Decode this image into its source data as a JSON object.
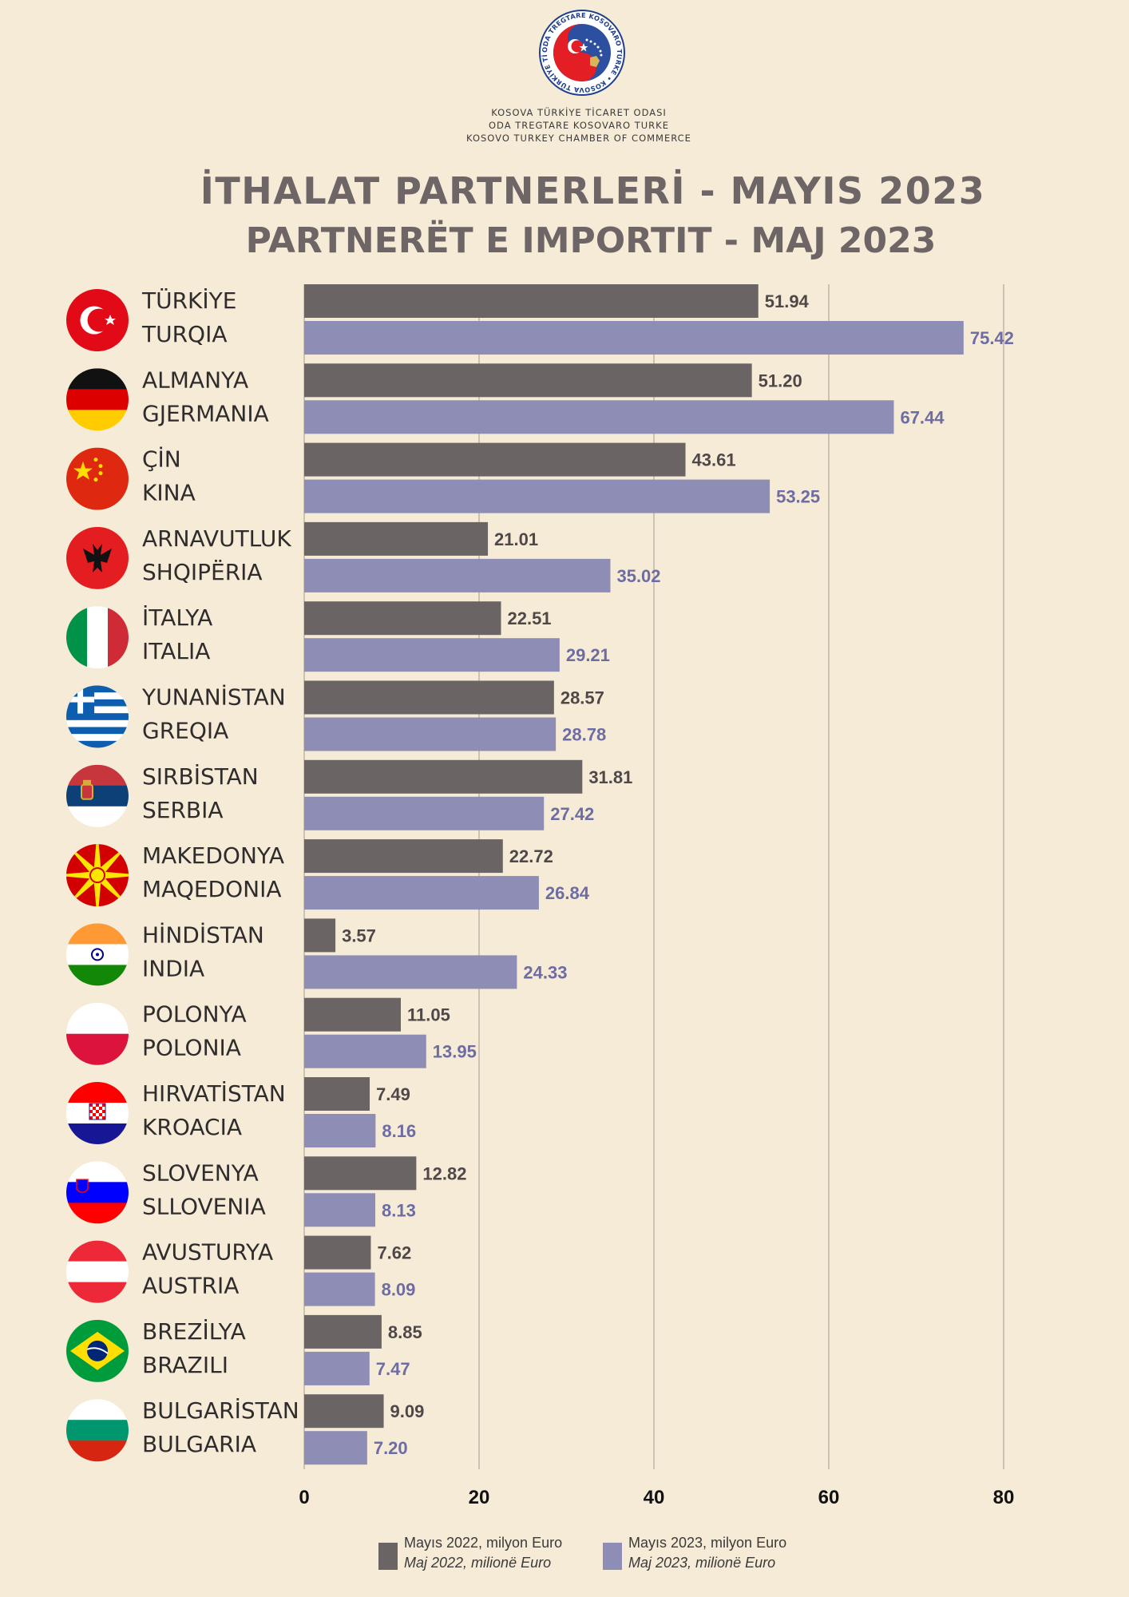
{
  "header": {
    "org_lines": [
      "KOSOVA TÜRKİYE TİCARET ODASI",
      "ODA TREGTARE KOSOVARO TURKE",
      "KOSOVO TURKEY CHAMBER OF COMMERCE"
    ],
    "logo_ring_text": "ODA TREGTARE KOSOVARO TURKE • KOSOVA TÜRKİYE TİCARET ODASI •",
    "title_line1": "İTHALAT PARTNERLERİ - MAYIS 2023",
    "title_line2": "PARTNERËT E IMPORTIT - MAJ 2023"
  },
  "colors": {
    "background": "#f6ebd6",
    "series_2022": "#6b6465",
    "series_2023": "#8e8db5",
    "label_2022": "#4f4849",
    "label_2023": "#6d6ca3",
    "grid": "#bdb4a6"
  },
  "chart_data": {
    "type": "bar",
    "orientation": "horizontal",
    "categories": [
      {
        "tr": "TÜRKİYE",
        "sq": "TURQIA",
        "flag": "turkey-flag"
      },
      {
        "tr": "ALMANYA",
        "sq": "GJERMANIA",
        "flag": "germany-flag"
      },
      {
        "tr": "ÇİN",
        "sq": "KINA",
        "flag": "china-flag"
      },
      {
        "tr": "ARNAVUTLUK",
        "sq": "SHQIPËRIA",
        "flag": "albania-flag"
      },
      {
        "tr": "İTALYA",
        "sq": "ITALIA",
        "flag": "italy-flag"
      },
      {
        "tr": "YUNANİSTAN",
        "sq": "GREQIA",
        "flag": "greece-flag"
      },
      {
        "tr": "SIRBİSTAN",
        "sq": "SERBIA",
        "flag": "serbia-flag"
      },
      {
        "tr": "MAKEDONYA",
        "sq": "MAQEDONIA",
        "flag": "north-macedonia-flag"
      },
      {
        "tr": "HİNDİSTAN",
        "sq": "INDIA",
        "flag": "india-flag"
      },
      {
        "tr": "POLONYA",
        "sq": "POLONIA",
        "flag": "poland-flag"
      },
      {
        "tr": "HIRVATİSTAN",
        "sq": "KROACIA",
        "flag": "croatia-flag"
      },
      {
        "tr": "SLOVENYA",
        "sq": "SLLOVENIA",
        "flag": "slovenia-flag"
      },
      {
        "tr": "AVUSTURYA",
        "sq": "AUSTRIA",
        "flag": "austria-flag"
      },
      {
        "tr": "BREZİLYA",
        "sq": "BRAZILI",
        "flag": "brazil-flag"
      },
      {
        "tr": "BULGARİSTAN",
        "sq": "BULGARIA",
        "flag": "bulgaria-flag"
      }
    ],
    "series": [
      {
        "name": "Mayıs 2022, milyon Euro",
        "name_alt": "Maj 2022, milionë Euro",
        "values": [
          51.94,
          51.2,
          43.61,
          21.01,
          22.51,
          28.57,
          31.81,
          22.72,
          3.57,
          11.05,
          7.49,
          12.82,
          7.62,
          8.85,
          9.09
        ],
        "value_labels": [
          "51.94",
          "51.20",
          "43.61",
          "21.01",
          "22.51",
          "28.57",
          "31.81",
          "22.72",
          "3.57",
          "11.05",
          "7.49",
          "12.82",
          "7.62",
          "8.85",
          "9.09"
        ]
      },
      {
        "name": "Mayıs 2023, milyon Euro",
        "name_alt": "Maj 2023, milionë Euro",
        "values": [
          75.42,
          67.44,
          53.25,
          35.02,
          29.21,
          28.78,
          27.42,
          26.84,
          24.33,
          13.95,
          8.16,
          8.13,
          8.09,
          7.47,
          7.2
        ],
        "value_labels": [
          "75.42",
          "67.44",
          "53.25",
          "35.02",
          "29.21",
          "28.78",
          "27.42",
          "26.84",
          "24.33",
          "13.95",
          "8.16",
          "8.13",
          "8.09",
          "7.47",
          "7.20"
        ]
      }
    ],
    "xlim": [
      0,
      80
    ],
    "xticks": [
      0,
      20,
      40,
      60,
      80
    ],
    "xtick_labels": [
      "0",
      "20",
      "40",
      "60",
      "80"
    ],
    "grid": true,
    "legend_position": "bottom"
  }
}
